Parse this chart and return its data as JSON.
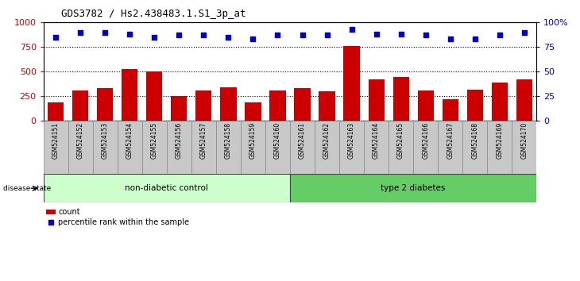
{
  "title": "GDS3782 / Hs2.438483.1.S1_3p_at",
  "samples": [
    "GSM524151",
    "GSM524152",
    "GSM524153",
    "GSM524154",
    "GSM524155",
    "GSM524156",
    "GSM524157",
    "GSM524158",
    "GSM524159",
    "GSM524160",
    "GSM524161",
    "GSM524162",
    "GSM524163",
    "GSM524164",
    "GSM524165",
    "GSM524166",
    "GSM524167",
    "GSM524168",
    "GSM524169",
    "GSM524170"
  ],
  "counts": [
    190,
    305,
    330,
    530,
    500,
    255,
    305,
    340,
    190,
    305,
    335,
    300,
    760,
    420,
    445,
    305,
    220,
    315,
    390,
    420
  ],
  "percentiles": [
    85,
    90,
    90,
    88,
    85,
    87,
    87,
    85,
    83,
    87,
    87,
    87,
    93,
    88,
    88,
    87,
    83,
    83,
    87,
    90
  ],
  "non_diabetic_count": 10,
  "type2_diabetes_count": 10,
  "bar_color": "#cc0000",
  "dot_color": "#0000cc",
  "ylim_left": [
    0,
    1000
  ],
  "ylim_right": [
    0,
    100
  ],
  "yticks_left": [
    0,
    250,
    500,
    750,
    1000
  ],
  "yticks_right": [
    0,
    25,
    50,
    75,
    100
  ],
  "grid_values": [
    250,
    500,
    750
  ],
  "non_diabetic_color": "#ccffcc",
  "type2_color": "#66cc66",
  "label_bg_color": "#c8c8c8",
  "legend_count_label": "count",
  "legend_pct_label": "percentile rank within the sample",
  "background_color": "#ffffff"
}
